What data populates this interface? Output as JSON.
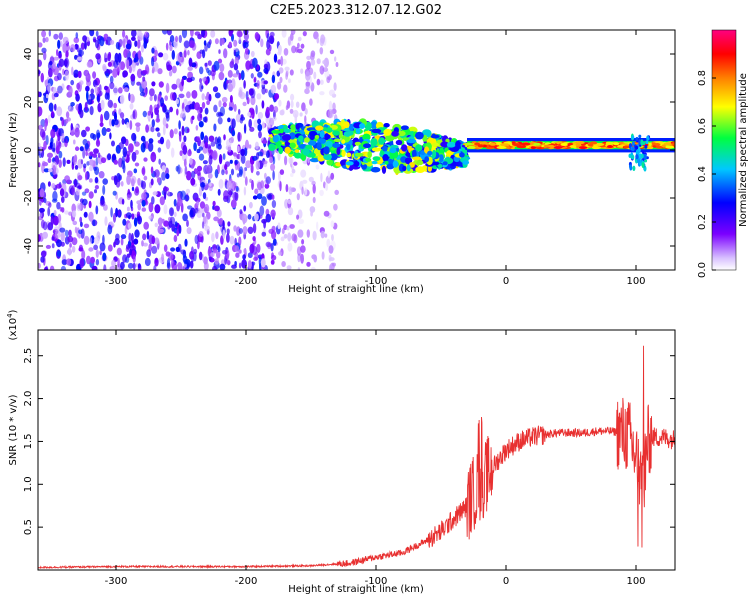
{
  "title": "C2E5.2023.312.07.12.G02",
  "colors": {
    "snr_line": "#e83030",
    "axis": "#000000"
  },
  "chart_data": [
    {
      "type": "heatmap",
      "xlabel": "Height of straight line (km)",
      "ylabel": "Frequency (Hz)",
      "xlim": [
        -360,
        130
      ],
      "ylim": [
        -50,
        50
      ],
      "x_ticks": [
        -300,
        -200,
        -100,
        0,
        100
      ],
      "y_ticks": [
        -40,
        -20,
        0,
        20,
        40
      ],
      "colorbar": {
        "label": "Normalized spectral amplitude",
        "range": [
          0,
          1
        ],
        "ticks": [
          "0.0",
          "0.2",
          "0.4",
          "0.6",
          "0.8"
        ],
        "colormap": [
          "#ffffff",
          "#7b00ff",
          "#0000ff",
          "#00c8ff",
          "#00ff40",
          "#ffff00",
          "#ff8000",
          "#ff0000",
          "#ff0080"
        ]
      },
      "regions": [
        {
          "x_range": [
            -360,
            -175
          ],
          "freq_range": [
            -50,
            50
          ],
          "level": 0.25,
          "description_level": "noise"
        },
        {
          "x_range": [
            -175,
            -130
          ],
          "freq_range": [
            -50,
            50
          ],
          "level": 0.1
        },
        {
          "x_range": [
            -180,
            -30
          ],
          "freq_center_start": 5,
          "freq_center_end": -2,
          "level": 0.55
        },
        {
          "x_range": [
            -30,
            130
          ],
          "freq_center": 2,
          "level": 0.85
        }
      ]
    },
    {
      "type": "line",
      "xlabel": "Height of straight line (km)",
      "ylabel": "SNR (10 * v/v)",
      "y_multiplier": "(x10^4)",
      "xlim": [
        -360,
        130
      ],
      "ylim": [
        0,
        2.8
      ],
      "x_ticks": [
        -300,
        -200,
        -100,
        0,
        100
      ],
      "y_ticks": [
        "0.5",
        "1.0",
        "1.5",
        "2.0",
        "2.5"
      ],
      "series": [
        {
          "color": "#e83030",
          "x": [
            -360,
            -300,
            -200,
            -150,
            -120,
            -100,
            -80,
            -60,
            -50,
            -40,
            -30,
            -25,
            -20,
            -15,
            -10,
            -5,
            0,
            10,
            20,
            30,
            40,
            50,
            60,
            70,
            80,
            90,
            95,
            100,
            105,
            110,
            120,
            130
          ],
          "y": [
            0.03,
            0.04,
            0.04,
            0.05,
            0.08,
            0.15,
            0.2,
            0.35,
            0.45,
            0.6,
            0.75,
            0.9,
            1.0,
            1.1,
            1.2,
            1.3,
            1.4,
            1.5,
            1.55,
            1.58,
            1.6,
            1.6,
            1.6,
            1.62,
            1.62,
            1.6,
            1.55,
            1.3,
            1.0,
            1.55,
            1.55,
            1.52
          ]
        }
      ]
    }
  ]
}
